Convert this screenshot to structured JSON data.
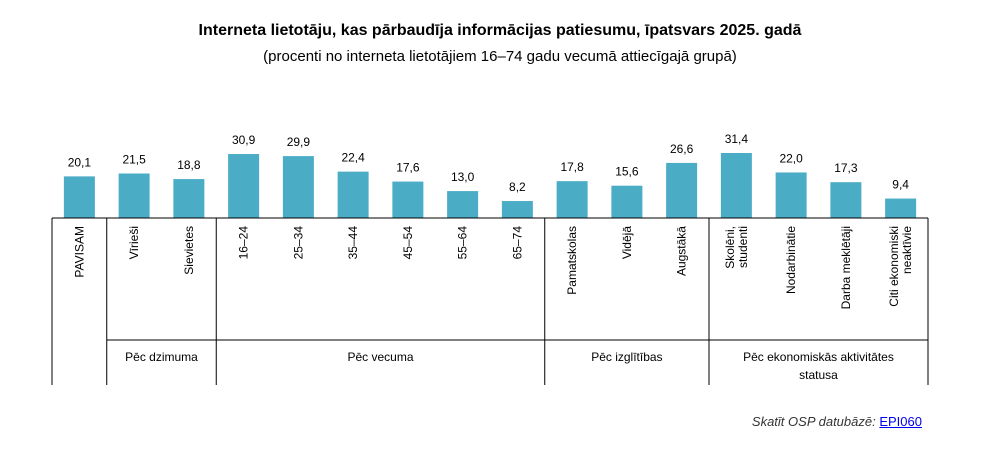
{
  "chart_data": {
    "type": "bar",
    "title": "Interneta lietotāju, kas pārbaudīja informācijas patiesumu, īpatsvars 2025. gadā",
    "subtitle": "(procenti no interneta lietotājiem 16–74 gadu vecumā attiecīgajā grupā)",
    "color": "#4bacc6",
    "ylim": [
      0,
      40
    ],
    "categories": [
      "PAVISAM",
      "Vīrieši",
      "Sievietes",
      "16–24",
      "25–34",
      "35–44",
      "45–54",
      "55–64",
      "65–74",
      "Pamatskolas",
      "Vidējā",
      "Augstākā",
      "Skolēni, studenti",
      "Nodarbinātie",
      "Darba meklētāji",
      "Citi ekonomiski neaktīvie"
    ],
    "values": [
      20.1,
      21.5,
      18.8,
      30.9,
      29.9,
      22.4,
      17.6,
      13.0,
      8.2,
      17.8,
      15.6,
      26.6,
      31.4,
      22.0,
      17.3,
      9.4
    ],
    "value_labels": [
      "20,1",
      "21,5",
      "18,8",
      "30,9",
      "29,9",
      "22,4",
      "17,6",
      "13,0",
      "8,2",
      "17,8",
      "15,6",
      "26,6",
      "31,4",
      "22,0",
      "17,3",
      "9,4"
    ],
    "groups": [
      {
        "label": "",
        "count": 1
      },
      {
        "label": "Pēc dzimuma",
        "count": 2
      },
      {
        "label": "Pēc vecuma",
        "count": 6
      },
      {
        "label": "Pēc izglītības",
        "count": 3
      },
      {
        "label": "Pēc ekonomiskās aktivitātes statusa",
        "count": 4
      }
    ]
  },
  "source": {
    "text": "Skatīt OSP datubāzē:",
    "link": "EPI060"
  }
}
